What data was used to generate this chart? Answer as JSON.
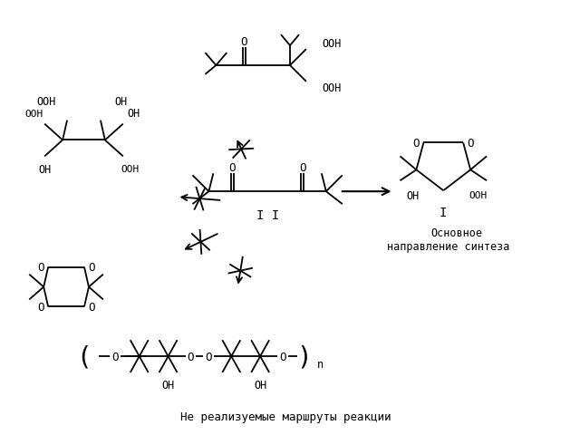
{
  "bg_color": "#ffffff",
  "figsize": [
    6.4,
    4.81
  ],
  "dpi": 100,
  "bottom_text": "Не реализуемые маршруты реакции",
  "label_osnov1": "Основное",
  "label_osnov2": "направление синтеза",
  "label_II": "I I",
  "label_I": "I"
}
